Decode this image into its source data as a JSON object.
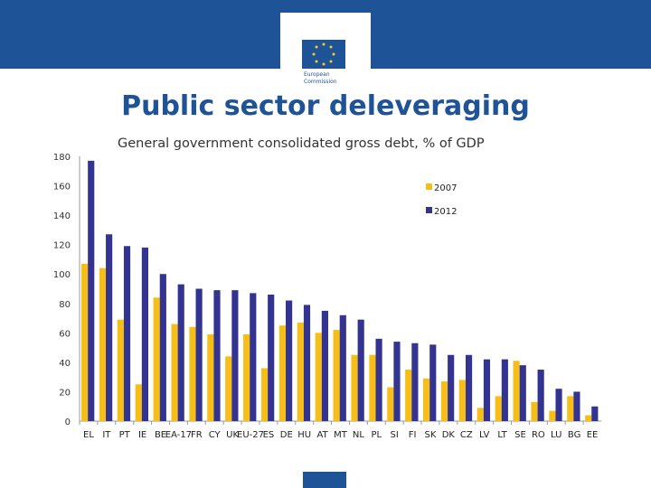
{
  "header": {
    "logo_text": "European Commission"
  },
  "title": "Public sector deleveraging",
  "chart_data": {
    "type": "bar",
    "title": "General government consolidated gross debt, % of GDP",
    "categories": [
      "EL",
      "IT",
      "PT",
      "IE",
      "BE",
      "EA-17",
      "FR",
      "CY",
      "UK",
      "EU-27",
      "ES",
      "DE",
      "HU",
      "AT",
      "MT",
      "NL",
      "PL",
      "SI",
      "FI",
      "SK",
      "DK",
      "CZ",
      "LV",
      "LT",
      "SE",
      "RO",
      "LU",
      "BG",
      "EE"
    ],
    "series": [
      {
        "name": "2007",
        "color": "#f7be17",
        "values": [
          107,
          104,
          69,
          25,
          84,
          66,
          64,
          59,
          44,
          59,
          36,
          65,
          67,
          60,
          62,
          45,
          45,
          23,
          35,
          29,
          27,
          28,
          9,
          17,
          41,
          13,
          7,
          17,
          4
        ]
      },
      {
        "name": "2012",
        "color": "#333391",
        "values": [
          177,
          127,
          119,
          118,
          100,
          93,
          90,
          89,
          89,
          87,
          86,
          82,
          79,
          75,
          72,
          69,
          56,
          54,
          53,
          52,
          45,
          45,
          42,
          42,
          38,
          35,
          22,
          20,
          10
        ]
      }
    ],
    "yticks": [
      0,
      20,
      40,
      60,
      80,
      100,
      120,
      140,
      160,
      180
    ],
    "ylim": [
      0,
      180
    ],
    "grid": false,
    "legend": "top-right"
  }
}
